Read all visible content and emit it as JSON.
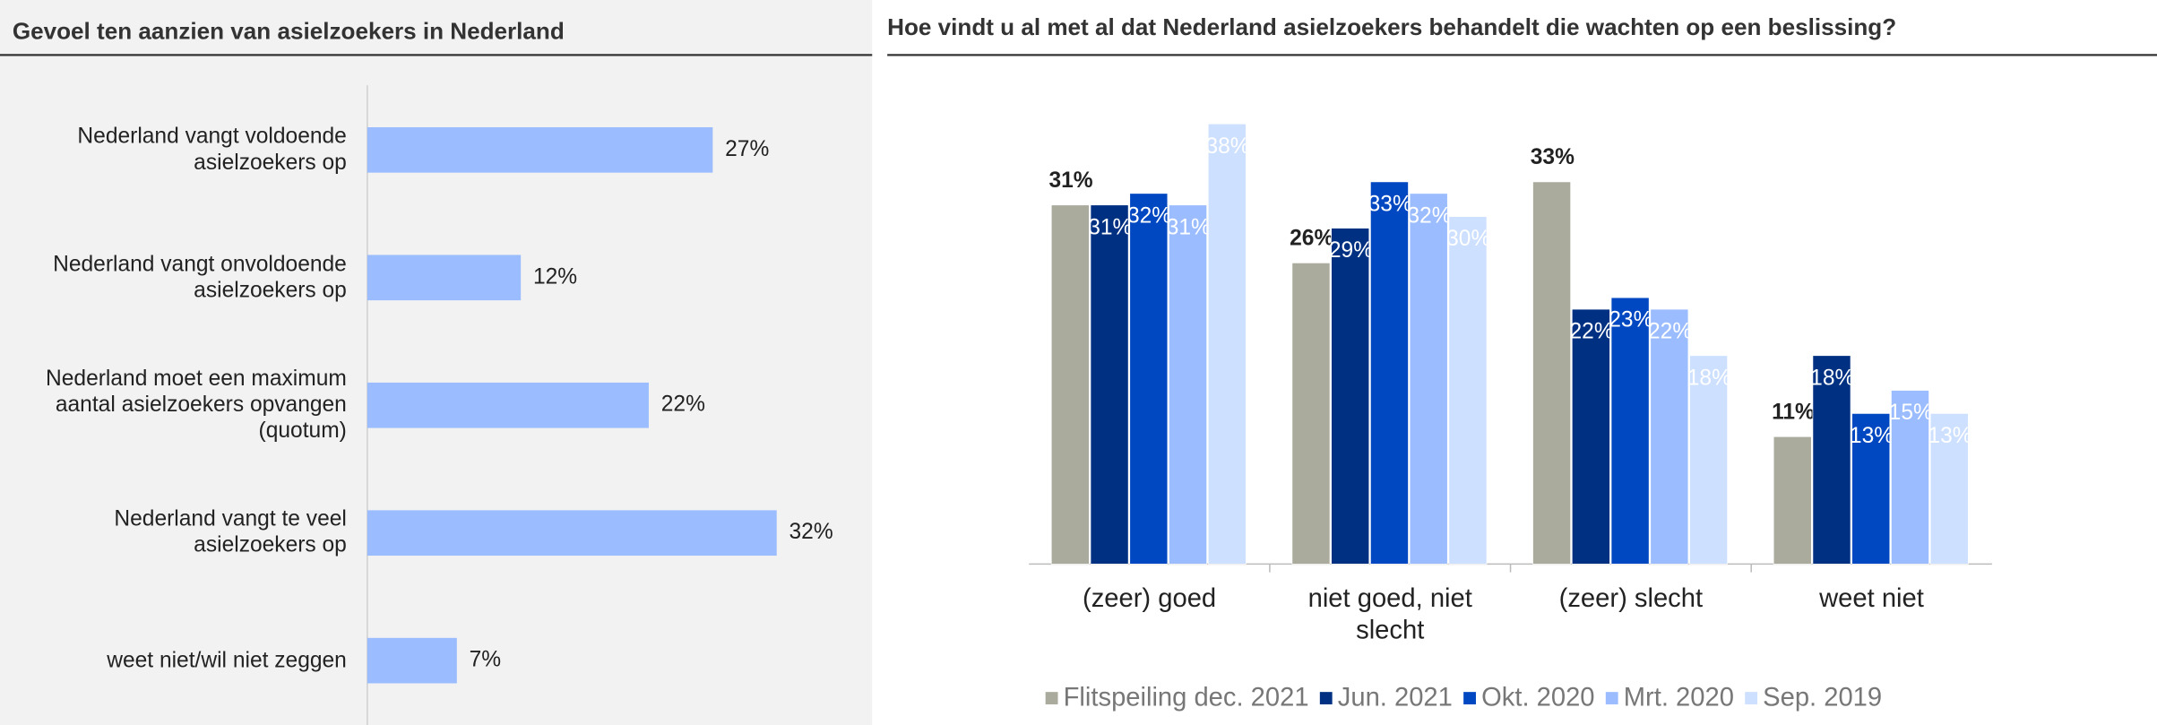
{
  "chart_data": [
    {
      "type": "hbar",
      "title": "Gevoel ten aanzien van asielzoekers in Nederland",
      "categories": [
        "Nederland vangt voldoende asielzoekers op",
        "Nederland vangt onvoldoende asielzoekers op",
        "Nederland moet een maximum aantal asielzoekers opvangen (quotum)",
        "Nederland vangt te veel asielzoekers op",
        "weet niet/wil niet zeggen"
      ],
      "values": [
        27,
        12,
        22,
        32,
        7
      ],
      "value_labels": [
        "27%",
        "12%",
        "22%",
        "32%",
        "7%"
      ],
      "color": "#9bbdff"
    },
    {
      "type": "bar",
      "title": "Hoe vindt u al met al dat Nederland asielzoekers behandelt die wachten op een beslissing?",
      "categories": [
        "(zeer) goed",
        "niet goed, niet slecht",
        "(zeer) slecht",
        "weet niet"
      ],
      "series": [
        {
          "name": "Flitspeiling dec. 2021",
          "color": "#aaab9c",
          "values": [
            31,
            26,
            33,
            11
          ],
          "value_labels": [
            "31%",
            "26%",
            "33%",
            "11%"
          ]
        },
        {
          "name": "Jun. 2021",
          "color": "#003082",
          "values": [
            31,
            29,
            22,
            18
          ],
          "value_labels": [
            "31%",
            "29%",
            "22%",
            "18%"
          ]
        },
        {
          "name": "Okt. 2020",
          "color": "#0047c2",
          "values": [
            32,
            33,
            23,
            13
          ],
          "value_labels": [
            "32%",
            "33%",
            "23%",
            "13%"
          ]
        },
        {
          "name": "Mrt. 2020",
          "color": "#9bbdff",
          "values": [
            31,
            32,
            22,
            15
          ],
          "value_labels": [
            "31%",
            "32%",
            "22%",
            "15%"
          ]
        },
        {
          "name": "Sep. 2019",
          "color": "#cde0ff",
          "values": [
            38,
            30,
            18,
            13
          ],
          "value_labels": [
            "38%",
            "30%",
            "18%",
            "13%"
          ]
        }
      ]
    }
  ]
}
